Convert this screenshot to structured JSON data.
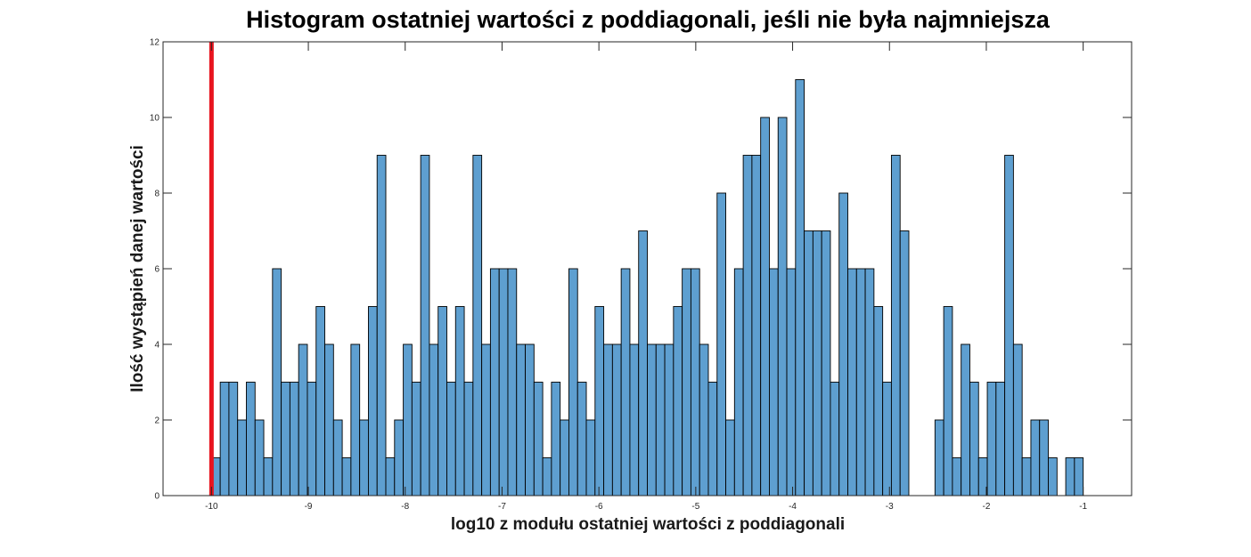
{
  "chart_data": {
    "type": "bar",
    "title": "Histogram ostatniej wartości z poddiagonali, jeśli nie była najmniejsza",
    "xlabel": "log10 z modułu ostatniej wartości z poddiagonali",
    "ylabel": "Ilość wystąpień danej wartości",
    "xlim": [
      -10.5,
      -0.5
    ],
    "ylim": [
      0,
      12
    ],
    "xticks": [
      -10,
      -9,
      -8,
      -7,
      -6,
      -5,
      -4,
      -3,
      -2,
      -1
    ],
    "yticks": [
      0,
      2,
      4,
      6,
      8,
      10,
      12
    ],
    "grid": false,
    "bin_start": -10,
    "bin_width": 0.09,
    "counts": [
      1,
      3,
      3,
      2,
      3,
      2,
      1,
      6,
      3,
      3,
      4,
      3,
      5,
      4,
      2,
      1,
      4,
      2,
      5,
      9,
      1,
      2,
      4,
      3,
      9,
      4,
      5,
      3,
      5,
      3,
      9,
      4,
      6,
      6,
      6,
      4,
      4,
      3,
      1,
      3,
      2,
      6,
      3,
      2,
      5,
      4,
      4,
      6,
      4,
      7,
      4,
      4,
      4,
      5,
      6,
      6,
      4,
      3,
      8,
      2,
      6,
      9,
      9,
      10,
      6,
      10,
      6,
      11,
      7,
      7,
      7,
      3,
      8,
      6,
      6,
      6,
      5,
      3,
      9,
      7,
      0,
      0,
      0,
      2,
      5,
      1,
      4,
      3,
      1,
      3,
      3,
      9,
      4,
      1,
      2,
      2,
      1,
      0,
      1,
      1
    ],
    "bar_color": "#5e9fd0",
    "edge_color": "#000000",
    "marker": {
      "x": -10,
      "color": "#e8141e"
    }
  }
}
